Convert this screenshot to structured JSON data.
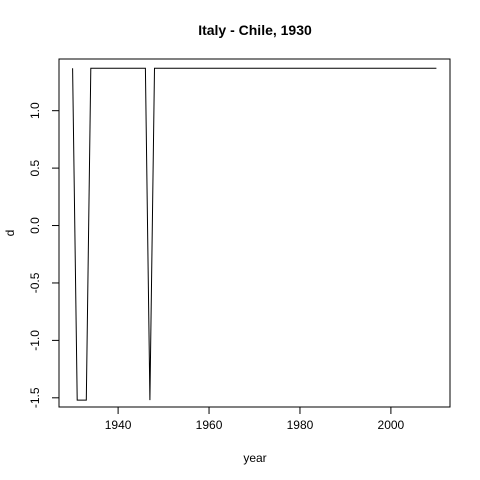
{
  "chart_data": {
    "type": "line",
    "title": "Italy - Chile, 1930",
    "xlabel": "year",
    "ylabel": "d",
    "xlim": [
      1927,
      2013
    ],
    "ylim": [
      -1.58,
      1.45
    ],
    "xticks": [
      1940,
      1960,
      1980,
      2000
    ],
    "yticks": [
      -1.5,
      -1.0,
      -0.5,
      0.0,
      0.5,
      1.0
    ],
    "ytick_labels": [
      "-1.5",
      "-1.0",
      "-0.5",
      "0.0",
      "0.5",
      "1.0"
    ],
    "grid": false,
    "series": [
      {
        "x": [
          1930,
          1931,
          1932,
          1933,
          1934,
          1935,
          1936,
          1937,
          1938,
          1939,
          1940,
          1941,
          1942,
          1943,
          1944,
          1945,
          1946,
          1947,
          1948,
          1949,
          1950,
          1960,
          1970,
          1980,
          1990,
          2000,
          2010
        ],
        "values": [
          1.37,
          -1.52,
          -1.52,
          -1.52,
          1.37,
          1.37,
          1.37,
          1.37,
          1.37,
          1.37,
          1.37,
          1.37,
          1.37,
          1.37,
          1.37,
          1.37,
          1.37,
          -1.52,
          1.37,
          1.37,
          1.37,
          1.37,
          1.37,
          1.37,
          1.37,
          1.37,
          1.37
        ]
      }
    ]
  }
}
